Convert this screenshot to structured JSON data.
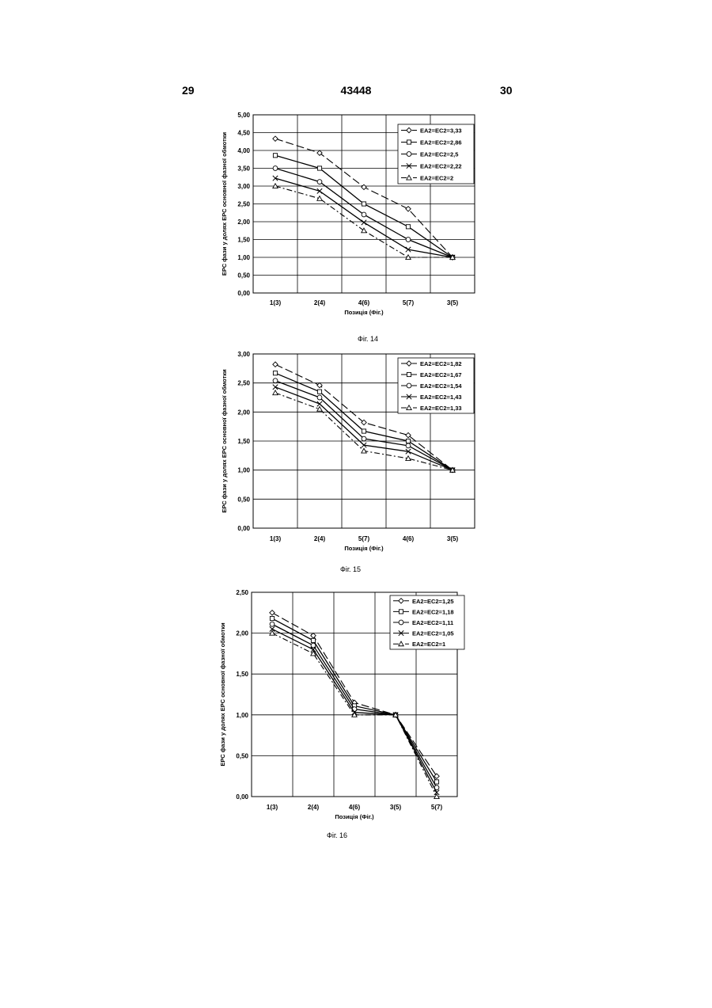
{
  "page": {
    "left_number": "29",
    "center_number": "43448",
    "right_number": "30"
  },
  "chart_data": [
    {
      "type": "line",
      "caption": "Фіг. 14",
      "xlabel": "Позиція (Фіг.)",
      "ylabel": "ЕРС фази у долях ЕРС основної фазної обмотки",
      "categories": [
        "1(3)",
        "2(4)",
        "4(6)",
        "5(7)",
        "3(5)"
      ],
      "ylim": [
        0,
        5
      ],
      "yticks": [
        "0,00",
        "0,50",
        "1,00",
        "1,50",
        "2,00",
        "2,50",
        "3,00",
        "3,50",
        "4,00",
        "4,50",
        "5,00"
      ],
      "grid": true,
      "legend_position": "top-right",
      "series": [
        {
          "name": "ЕА2=ЕС2=3,33",
          "values": [
            4.33,
            3.93,
            2.97,
            2.36,
            1.0
          ],
          "marker": "diamond",
          "dash": "10 4"
        },
        {
          "name": "ЕА2=ЕС2=2,86",
          "values": [
            3.86,
            3.5,
            2.5,
            1.86,
            1.0
          ],
          "marker": "square",
          "dash": ""
        },
        {
          "name": "ЕА2=ЕС2=2,5",
          "values": [
            3.5,
            3.12,
            2.2,
            1.5,
            1.0
          ],
          "marker": "circle",
          "dash": ""
        },
        {
          "name": "ЕА2=ЕС2=2,22",
          "values": [
            3.22,
            2.86,
            1.98,
            1.22,
            1.0
          ],
          "marker": "x",
          "dash": ""
        },
        {
          "name": "ЕА2=ЕС2=2",
          "values": [
            3.0,
            2.65,
            1.75,
            1.0,
            1.0
          ],
          "marker": "triangle",
          "dash": "7 3 2 3"
        }
      ]
    },
    {
      "type": "line",
      "caption": "Фіг. 15",
      "xlabel": "Позиція (Фіг.)",
      "ylabel": "ЕРС фази у долях ЕРС основної фазної обмотки",
      "categories": [
        "1(3)",
        "2(4)",
        "5(7)",
        "4(6)",
        "3(5)"
      ],
      "ylim": [
        0,
        3
      ],
      "yticks": [
        "0,00",
        "0,50",
        "1,00",
        "1,50",
        "2,00",
        "2,50",
        "3,00"
      ],
      "grid": true,
      "legend_position": "top-right",
      "series": [
        {
          "name": "ЕА2=ЕС2=1,82",
          "values": [
            2.82,
            2.46,
            1.82,
            1.6,
            1.0
          ],
          "marker": "diamond",
          "dash": "10 4"
        },
        {
          "name": "ЕА2=ЕС2=1,67",
          "values": [
            2.67,
            2.35,
            1.67,
            1.5,
            1.0
          ],
          "marker": "square",
          "dash": ""
        },
        {
          "name": "ЕА2=ЕС2=1,54",
          "values": [
            2.54,
            2.25,
            1.54,
            1.42,
            1.0
          ],
          "marker": "circle",
          "dash": ""
        },
        {
          "name": "ЕА2=ЕС2=1,43",
          "values": [
            2.43,
            2.14,
            1.43,
            1.32,
            1.0
          ],
          "marker": "x",
          "dash": ""
        },
        {
          "name": "ЕА2=ЕС2=1,33",
          "values": [
            2.33,
            2.05,
            1.33,
            1.2,
            1.0
          ],
          "marker": "triangle",
          "dash": "7 3 2 3"
        }
      ]
    },
    {
      "type": "line",
      "caption": "Фіг. 16",
      "xlabel": "Позиція (Фіг.)",
      "ylabel": "ЕРС фази у долях ЕРС основної фазної обмотки",
      "categories": [
        "1(3)",
        "2(4)",
        "4(6)",
        "3(5)",
        "5(7)"
      ],
      "ylim": [
        0,
        2.5
      ],
      "yticks": [
        "0,00",
        "0,50",
        "1,00",
        "1,50",
        "2,00",
        "2,50"
      ],
      "grid": true,
      "legend_position": "top-right",
      "series": [
        {
          "name": "ЕА2=ЕС2=1,25",
          "values": [
            2.25,
            1.97,
            1.15,
            1.0,
            0.25
          ],
          "marker": "diamond",
          "dash": "10 4"
        },
        {
          "name": "ЕА2=ЕС2=1,18",
          "values": [
            2.18,
            1.91,
            1.11,
            1.0,
            0.18
          ],
          "marker": "square",
          "dash": ""
        },
        {
          "name": "ЕА2=ЕС2=1,11",
          "values": [
            2.11,
            1.85,
            1.07,
            1.0,
            0.11
          ],
          "marker": "circle",
          "dash": ""
        },
        {
          "name": "ЕА2=ЕС2=1,05",
          "values": [
            2.05,
            1.8,
            1.03,
            1.0,
            0.05
          ],
          "marker": "x",
          "dash": ""
        },
        {
          "name": "ЕА2=ЕС2=1",
          "values": [
            2.0,
            1.75,
            1.0,
            1.0,
            0.0
          ],
          "marker": "triangle",
          "dash": "7 3 2 3"
        }
      ]
    }
  ]
}
